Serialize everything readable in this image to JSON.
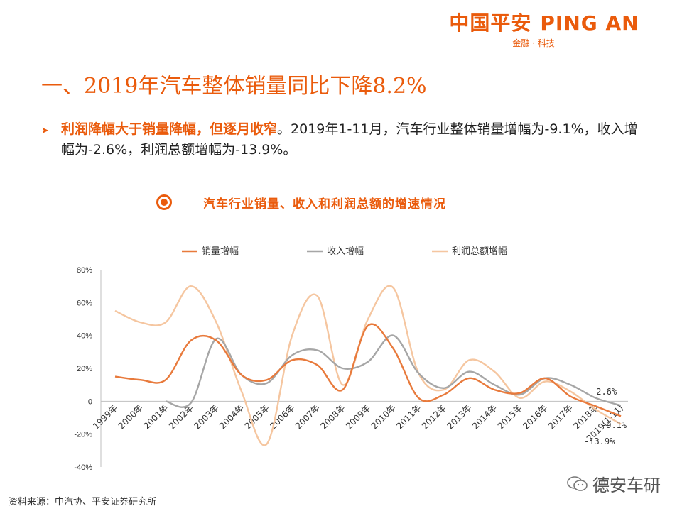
{
  "logo": {
    "cn": "中国平安",
    "en": "PING AN",
    "sub": "金融 · 科技"
  },
  "title": "一、2019年汽车整体销量同比下降8.2%",
  "bullet": {
    "bold": "利润降幅大于销量降幅，但逐月收窄",
    "text": "。2019年1-11月，汽车行业整体销量增幅为-9.1%，收入增幅为-2.6%，利润总额增幅为-13.9%。"
  },
  "section_title": "汽车行业销量、收入和利润总额的增速情况",
  "source": "资料来源：中汽协、平安证券研究所",
  "watermark": "德安车研",
  "icons": {
    "bullet": "chevron-right-icon",
    "section": "target-icon",
    "watermark": "wechat-icon"
  },
  "chart_data": {
    "type": "line",
    "title": "",
    "xlabel": "",
    "ylabel": "",
    "categories": [
      "1999年",
      "2000年",
      "2001年",
      "2002年",
      "2003年",
      "2004年",
      "2005年",
      "2006年",
      "2007年",
      "2008年",
      "2009年",
      "2010年",
      "2011年",
      "2012年",
      "2013年",
      "2014年",
      "2015年",
      "2016年",
      "2017年",
      "2018年",
      "2019(1-11)"
    ],
    "ylim": [
      -40,
      80
    ],
    "yticks": [
      -40,
      -20,
      0,
      20,
      40,
      60,
      80
    ],
    "ytick_labels": [
      "-40%",
      "-20%",
      "0",
      "20%",
      "40%",
      "60%",
      "80%"
    ],
    "legend_position": "top",
    "grid": false,
    "series": [
      {
        "name": "销量增幅",
        "color": "#e87a3c",
        "values": [
          15,
          13,
          13,
          37,
          37,
          16,
          13,
          25,
          22,
          7,
          46,
          32,
          2,
          4,
          14,
          7,
          5,
          14,
          3,
          -3,
          -9.1
        ]
      },
      {
        "name": "收入增幅",
        "color": "#a6a6a6",
        "values": [
          null,
          null,
          0,
          -1,
          38,
          16,
          11,
          28,
          31,
          20,
          24,
          40,
          17,
          8,
          18,
          10,
          4,
          14,
          10,
          2,
          -2.6
        ]
      },
      {
        "name": "利润总额增幅",
        "color": "#f5c6a0",
        "values": [
          55,
          48,
          48,
          70,
          48,
          6,
          -26,
          40,
          64,
          10,
          50,
          69,
          17,
          7,
          25,
          18,
          2,
          12,
          6,
          -5,
          -13.9
        ]
      }
    ],
    "annotations": [
      {
        "text": "-2.6%",
        "series": 1
      },
      {
        "text": "-9.1%",
        "series": 0
      },
      {
        "text": "-13.9%",
        "series": 2
      }
    ]
  }
}
